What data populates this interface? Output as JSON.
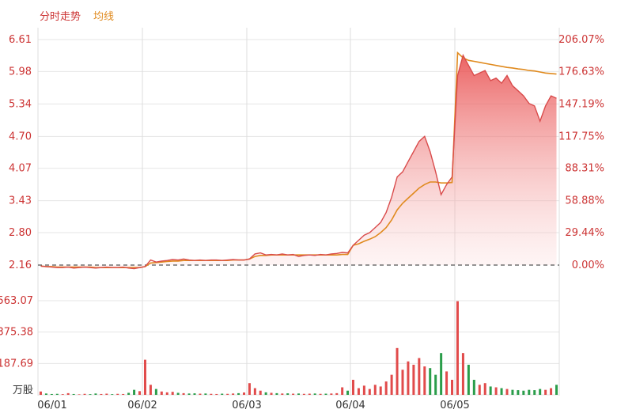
{
  "legend": {
    "price_label": "分时走势",
    "avg_label": "均线",
    "price_color": "#d94b4b",
    "avg_color": "#e08a1e"
  },
  "chart_data": {
    "type": "line",
    "title": "",
    "xlabel": "",
    "ylabel": "",
    "grid": true,
    "legend_position": "top-left",
    "x_tick_labels": [
      "06/01",
      "06/02",
      "06/03",
      "06/04",
      "06/05"
    ],
    "price_axis": {
      "ticks": [
        "6.61",
        "5.98",
        "5.34",
        "4.70",
        "4.07",
        "3.43",
        "2.80",
        "2.16"
      ],
      "ylim": [
        2.16,
        6.61
      ]
    },
    "pct_axis": {
      "ticks": [
        "206.07%",
        "176.63%",
        "147.19%",
        "117.75%",
        "88.31%",
        "58.88%",
        "29.44%",
        "0.00%"
      ]
    },
    "reference_price": 2.16,
    "volume_axis": {
      "unit": "万股",
      "ticks": [
        "563.07",
        "375.38",
        "187.69"
      ],
      "ylim": [
        0,
        563.07
      ]
    },
    "days": [
      {
        "label": "06/01",
        "price": [
          2.14,
          2.13,
          2.12,
          2.11,
          2.11,
          2.12,
          2.1,
          2.11,
          2.12,
          2.11,
          2.1,
          2.11,
          2.12,
          2.11,
          2.11,
          2.12,
          2.1,
          2.09,
          2.11
        ],
        "avg": [
          2.14,
          2.13,
          2.13,
          2.12,
          2.12,
          2.12,
          2.12,
          2.12,
          2.12,
          2.12,
          2.11,
          2.11,
          2.11,
          2.11,
          2.11,
          2.11,
          2.11,
          2.11,
          2.11
        ],
        "volume": [
          20,
          8,
          5,
          6,
          4,
          10,
          5,
          3,
          6,
          4,
          8,
          5,
          7,
          4,
          6,
          5,
          12,
          30,
          22
        ]
      },
      {
        "label": "06/02",
        "price": [
          2.13,
          2.26,
          2.22,
          2.24,
          2.25,
          2.27,
          2.26,
          2.28,
          2.26,
          2.25,
          2.26,
          2.25,
          2.26,
          2.26,
          2.25,
          2.26,
          2.27,
          2.26,
          2.26
        ],
        "avg": [
          2.13,
          2.2,
          2.21,
          2.22,
          2.23,
          2.24,
          2.24,
          2.25,
          2.25,
          2.25,
          2.25,
          2.25,
          2.25,
          2.25,
          2.25,
          2.25,
          2.26,
          2.26,
          2.26
        ],
        "volume": [
          210,
          60,
          35,
          20,
          15,
          18,
          12,
          10,
          8,
          9,
          7,
          8,
          6,
          5,
          7,
          6,
          8,
          10,
          14
        ]
      },
      {
        "label": "06/03",
        "price": [
          2.28,
          2.38,
          2.4,
          2.36,
          2.37,
          2.36,
          2.38,
          2.36,
          2.37,
          2.33,
          2.35,
          2.36,
          2.35,
          2.37,
          2.36,
          2.38,
          2.39,
          2.41,
          2.4
        ],
        "avg": [
          2.28,
          2.33,
          2.35,
          2.35,
          2.36,
          2.36,
          2.36,
          2.36,
          2.36,
          2.36,
          2.36,
          2.36,
          2.36,
          2.36,
          2.36,
          2.36,
          2.36,
          2.37,
          2.37
        ],
        "volume": [
          70,
          40,
          25,
          15,
          12,
          10,
          8,
          9,
          7,
          8,
          6,
          7,
          8,
          6,
          7,
          8,
          10,
          45,
          25
        ]
      },
      {
        "label": "06/04",
        "price": [
          2.55,
          2.65,
          2.75,
          2.8,
          2.9,
          3.0,
          3.2,
          3.5,
          3.9,
          4.0,
          4.2,
          4.4,
          4.6,
          4.7,
          4.4,
          4.0,
          3.55,
          3.75,
          3.9
        ],
        "avg": [
          2.55,
          2.58,
          2.63,
          2.67,
          2.72,
          2.8,
          2.9,
          3.05,
          3.25,
          3.38,
          3.48,
          3.58,
          3.68,
          3.75,
          3.8,
          3.8,
          3.78,
          3.78,
          3.79
        ],
        "volume": [
          90,
          40,
          55,
          35,
          60,
          50,
          80,
          120,
          280,
          150,
          200,
          180,
          220,
          170,
          160,
          120,
          250,
          140,
          90
        ]
      },
      {
        "label": "06/05",
        "price": [
          5.9,
          6.3,
          6.1,
          5.9,
          5.95,
          6.0,
          5.8,
          5.85,
          5.75,
          5.9,
          5.7,
          5.6,
          5.5,
          5.35,
          5.3,
          5.0,
          5.3,
          5.5,
          5.45
        ],
        "avg": [
          6.35,
          6.25,
          6.2,
          6.18,
          6.16,
          6.14,
          6.12,
          6.1,
          6.08,
          6.06,
          6.05,
          6.03,
          6.02,
          6.0,
          5.99,
          5.97,
          5.95,
          5.94,
          5.93
        ],
        "volume": [
          560,
          250,
          180,
          90,
          60,
          70,
          50,
          45,
          40,
          35,
          30,
          28,
          25,
          30,
          28,
          35,
          30,
          40,
          60
        ]
      }
    ]
  }
}
